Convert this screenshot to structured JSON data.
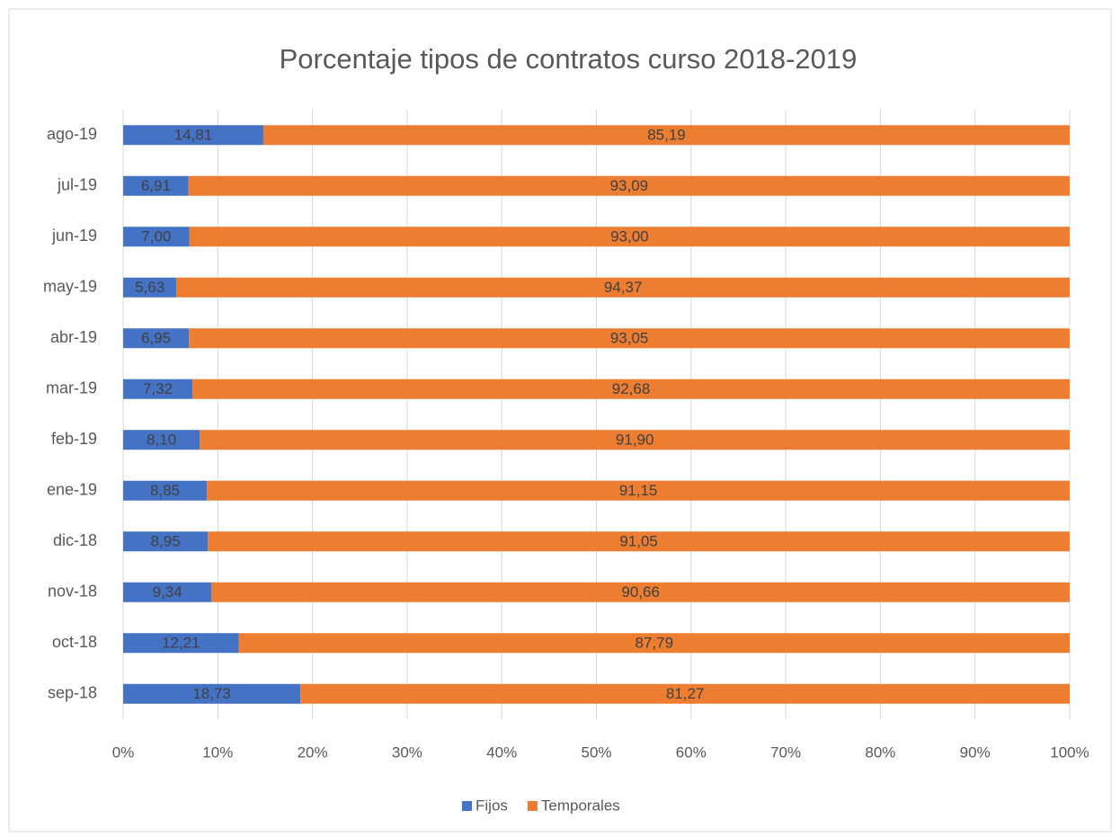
{
  "chart_data": {
    "type": "bar",
    "orientation": "horizontal",
    "stacked": true,
    "title": "Porcentaje tipos de contratos curso 2018-2019",
    "categories": [
      "sep-18",
      "oct-18",
      "nov-18",
      "dic-18",
      "ene-19",
      "feb-19",
      "mar-19",
      "abr-19",
      "may-19",
      "jun-19",
      "jul-19",
      "ago-19"
    ],
    "series": [
      {
        "name": "Fijos",
        "color": "#4472c4",
        "values": [
          18.73,
          12.21,
          9.34,
          8.95,
          8.85,
          8.1,
          7.32,
          6.95,
          5.63,
          7.0,
          6.91,
          14.81
        ],
        "value_labels": [
          "18,73",
          "12,21",
          "9,34",
          "8,95",
          "8,85",
          "8,10",
          "7,32",
          "6,95",
          "5,63",
          "7,00",
          "6,91",
          "14,81"
        ]
      },
      {
        "name": "Temporales",
        "color": "#ed7d31",
        "values": [
          81.27,
          87.79,
          90.66,
          91.05,
          91.15,
          91.9,
          92.68,
          93.05,
          94.37,
          93.0,
          93.09,
          85.19
        ],
        "value_labels": [
          "81,27",
          "87,79",
          "90,66",
          "91,05",
          "91,15",
          "91,90",
          "92,68",
          "93,05",
          "94,37",
          "93,00",
          "93,09",
          "85,19"
        ]
      }
    ],
    "xlim": [
      0,
      100
    ],
    "xticks": [
      {
        "value": 0,
        "label": "0%"
      },
      {
        "value": 10,
        "label": "10%"
      },
      {
        "value": 20,
        "label": "20%"
      },
      {
        "value": 30,
        "label": "30%"
      },
      {
        "value": 40,
        "label": "40%"
      },
      {
        "value": 50,
        "label": "50%"
      },
      {
        "value": 60,
        "label": "60%"
      },
      {
        "value": 70,
        "label": "70%"
      },
      {
        "value": 80,
        "label": "80%"
      },
      {
        "value": 90,
        "label": "90%"
      },
      {
        "value": 100,
        "label": "100%"
      }
    ],
    "grid": true,
    "legend": "bottom"
  }
}
